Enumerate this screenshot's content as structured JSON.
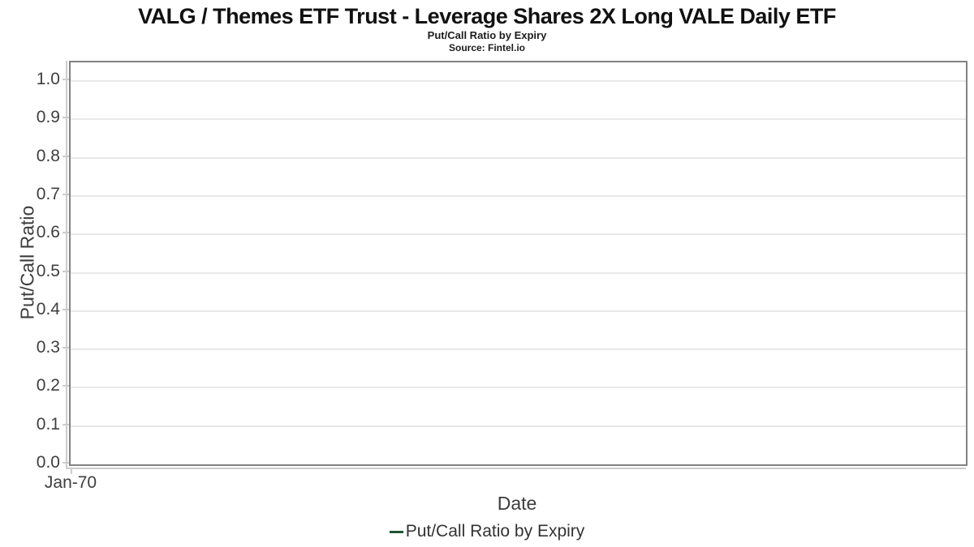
{
  "chart_data": {
    "type": "line",
    "title": "VALG / Themes ETF Trust - Leverage Shares 2X Long VALE Daily ETF",
    "subtitle": "Put/Call Ratio by Expiry",
    "source": "Source: Fintel.io",
    "xlabel": "Date",
    "ylabel": "Put/Call Ratio",
    "ylim": [
      0.0,
      1.05
    ],
    "yticks": [
      0.0,
      0.1,
      0.2,
      0.3,
      0.4,
      0.5,
      0.6,
      0.7,
      0.8,
      0.9,
      1.0
    ],
    "xticks": [
      "Jan-70"
    ],
    "grid": true,
    "legend_position": "bottom-center",
    "series": [
      {
        "name": "Put/Call Ratio by Expiry",
        "color": "#1e5631",
        "x": [],
        "values": []
      }
    ]
  },
  "colors": {
    "background": "#ffffff",
    "plot_border": "#828282",
    "gridline": "#e8e8e8",
    "axis_line": "#cccccc",
    "tick_label": "#3f3f3f",
    "axis_title": "#3c3c3c",
    "title_text": "#111111",
    "legend_text": "#333333",
    "series_green": "#1e5631"
  }
}
